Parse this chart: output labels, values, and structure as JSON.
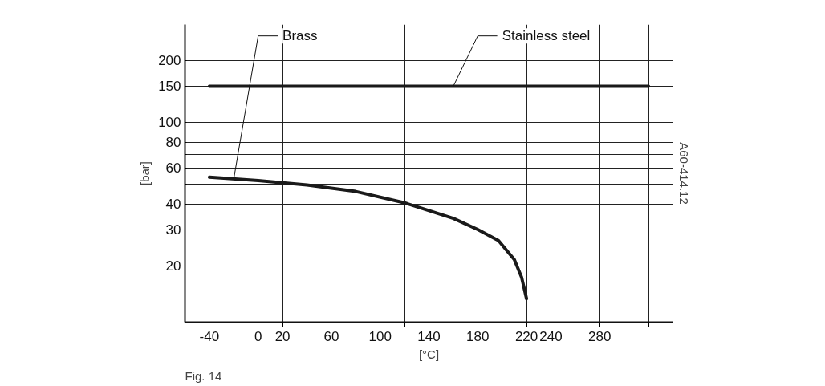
{
  "chart_data": {
    "type": "line",
    "xlabel": "[°C]",
    "ylabel": "[bar]",
    "xlim": [
      -60,
      340
    ],
    "ylim": [
      10.6,
      300
    ],
    "log": "y",
    "grid": true,
    "xticks": [
      -40,
      {
        "value": -20,
        "label": null
      },
      0,
      20,
      {
        "value": 40,
        "label": null
      },
      60,
      {
        "value": 80,
        "label": null
      },
      100,
      {
        "value": 120,
        "label": null
      },
      140,
      {
        "value": 160,
        "label": null
      },
      180,
      {
        "value": 200,
        "label": null
      },
      220,
      240,
      {
        "value": 260,
        "label": null
      },
      280,
      {
        "value": 300,
        "label": null
      },
      {
        "value": 320,
        "label": null
      }
    ],
    "yticks": [
      20,
      30,
      40,
      {
        "value": 50,
        "label": null
      },
      60,
      {
        "value": 70,
        "label": null
      },
      80,
      {
        "value": 90,
        "label": null
      },
      100,
      150,
      200
    ],
    "series": [
      {
        "color": "#1a1a1a",
        "x": [
          -40,
          0,
          40,
          80,
          120,
          160,
          180,
          197,
          210,
          216,
          220
        ],
        "values": [
          54,
          52,
          49.5,
          46,
          40.5,
          34,
          30,
          26.5,
          21.4,
          17.5,
          13.8
        ]
      },
      {
        "color": "#1a1a1a",
        "x": [
          -40,
          320
        ],
        "values": [
          150,
          150
        ]
      }
    ],
    "annotations": [
      {
        "text": "Brass",
        "x": -20,
        "y": 53
      },
      {
        "text": "Stainless steel",
        "x": 160,
        "y": 150
      },
      "A60-414.12",
      "Fig. 14"
    ]
  }
}
